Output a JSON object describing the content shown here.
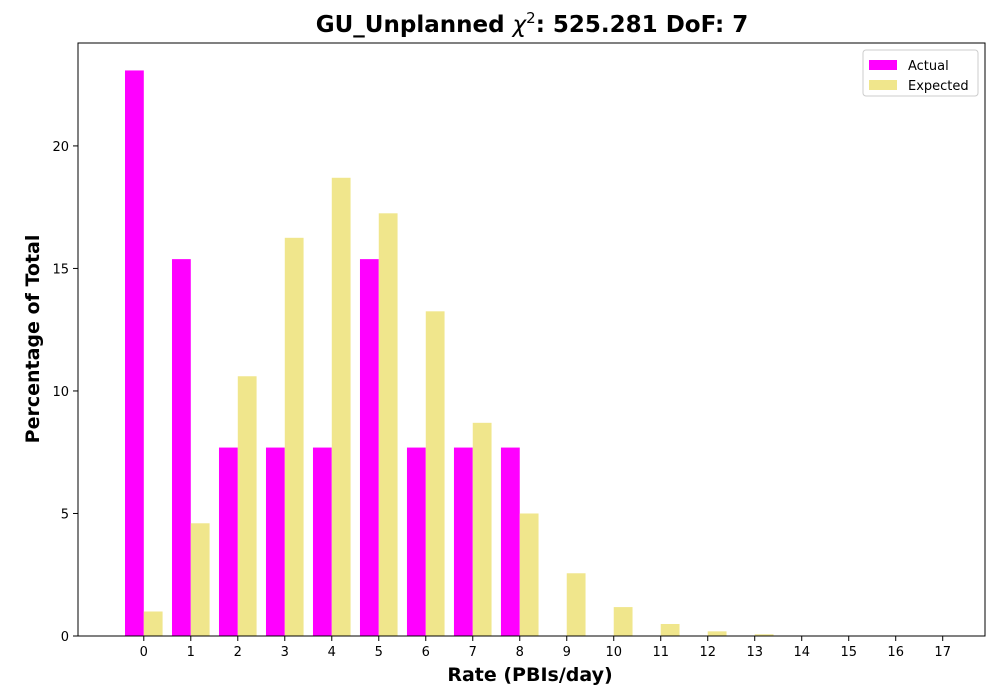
{
  "chart_data": {
    "type": "bar",
    "title": "GU_Unplanned χ²: 525.281 DoF: 7",
    "title_parts": {
      "prefix": "GU_Unplanned ",
      "symbol": "χ",
      "superscript": "2",
      "suffix": ": 525.281 DoF: 7"
    },
    "xlabel": "Rate (PBIs/day)",
    "ylabel": "Percentage of Total",
    "categories": [
      "0",
      "1",
      "2",
      "3",
      "4",
      "5",
      "6",
      "7",
      "8",
      "9",
      "10",
      "11",
      "12",
      "13",
      "14",
      "15",
      "16",
      "17"
    ],
    "series": [
      {
        "name": "Actual",
        "color": "#ff00ff",
        "values": [
          23.08,
          15.38,
          7.69,
          7.69,
          7.69,
          15.38,
          7.69,
          7.69,
          7.69,
          0,
          0,
          0,
          0,
          0,
          0,
          0,
          0,
          0
        ]
      },
      {
        "name": "Expected",
        "color": "#f0e68c",
        "values": [
          1.0,
          4.6,
          10.6,
          16.25,
          18.7,
          17.25,
          13.25,
          8.7,
          5.0,
          2.56,
          1.18,
          0.49,
          0.19,
          0.07,
          0.02,
          0.01,
          0.0,
          0.0
        ]
      }
    ],
    "yticks": [
      0,
      5,
      10,
      15,
      20
    ],
    "ylim": [
      0,
      24.2
    ],
    "xlim": [
      -1.4,
      17.9
    ],
    "legend": "top-right",
    "grid": false
  }
}
